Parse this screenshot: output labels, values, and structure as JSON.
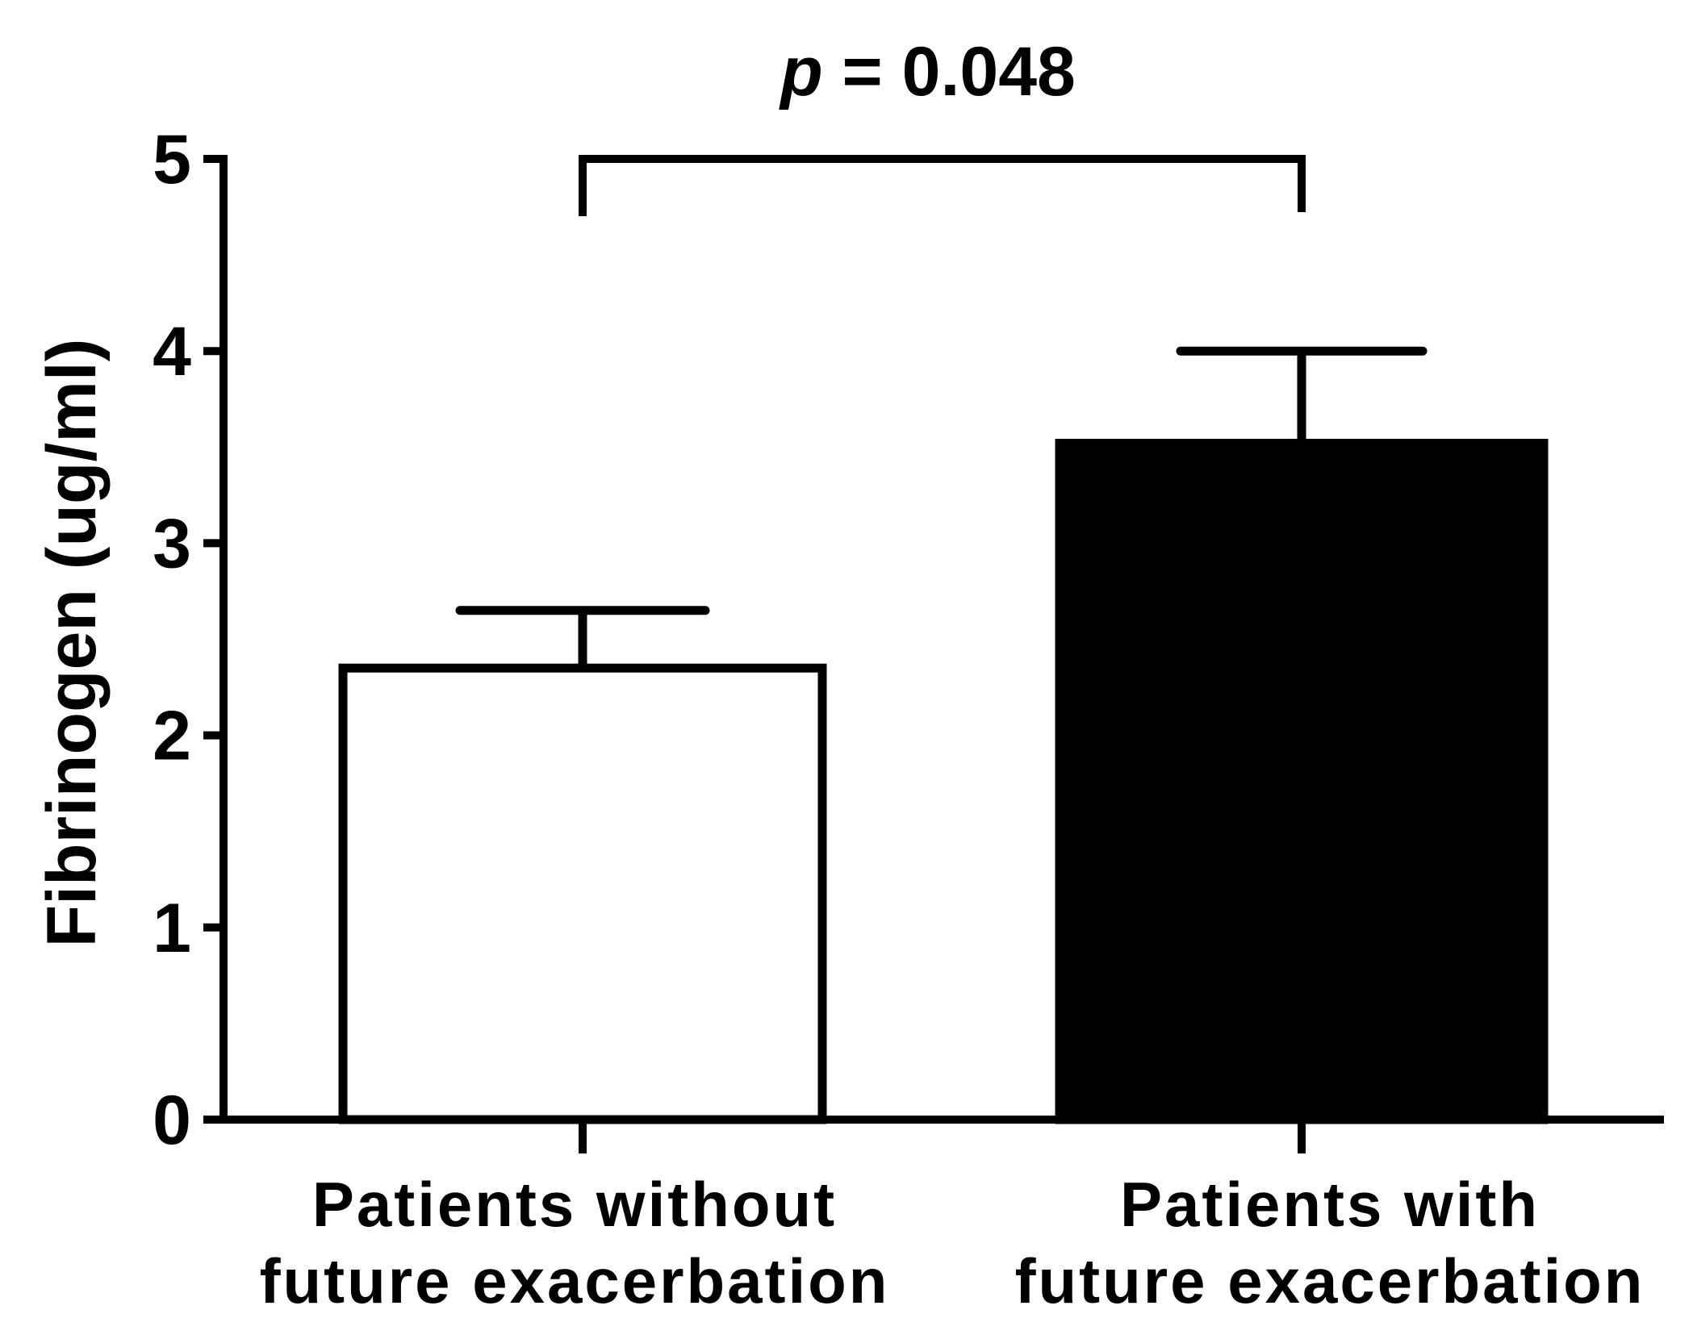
{
  "chart_data": {
    "type": "bar",
    "title": "",
    "ylabel": "Fibrinogen (ug/ml)",
    "xlabel": "",
    "ylim": [
      0,
      5
    ],
    "yticks": [
      "0",
      "1",
      "2",
      "3",
      "4",
      "5"
    ],
    "categories": [
      [
        "Patients without",
        "future exacerbation"
      ],
      [
        "Patients with",
        "future exacerbation"
      ]
    ],
    "values": [
      2.35,
      3.52
    ],
    "error_upper": [
      2.65,
      4.0
    ],
    "bar_fill": [
      "#ffffff",
      "#000000"
    ],
    "significance": {
      "p_symbol": "p",
      "p_rest": " = 0.048"
    },
    "grid": false,
    "legend": "none"
  }
}
